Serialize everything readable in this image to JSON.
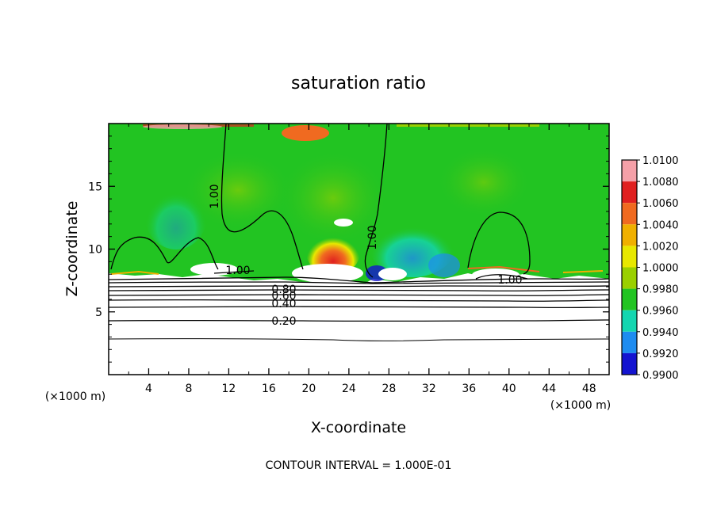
{
  "chart_data": {
    "type": "heatmap",
    "title": "saturation ratio",
    "xlabel": "X-coordinate",
    "ylabel": "Z-coordinate",
    "x_unit_label": "(×1000 m)",
    "y_unit_label": "(×1000 m)",
    "xlim": [
      0,
      50
    ],
    "ylim": [
      0,
      20
    ],
    "x_ticks": [
      "4",
      "8",
      "12",
      "16",
      "20",
      "24",
      "28",
      "32",
      "36",
      "40",
      "44",
      "48"
    ],
    "y_ticks": [
      "5",
      "10",
      "15"
    ],
    "footer": "CONTOUR INTERVAL = 1.000E-01",
    "colorbar": {
      "levels": [
        "1.0100",
        "1.0080",
        "1.0060",
        "1.0040",
        "1.0020",
        "1.0000",
        "0.9980",
        "0.9960",
        "0.9940",
        "0.9920",
        "0.9900"
      ],
      "colors": [
        "#f5a0a8",
        "#e02020",
        "#f06a20",
        "#f0b000",
        "#e8e800",
        "#9ad000",
        "#22c422",
        "#14d6b0",
        "#1e8cf0",
        "#1414d0",
        "#8014b0"
      ]
    },
    "contour_labels": [
      "1.00",
      "1.00",
      "1.00",
      "1.00",
      "0.80",
      "0.60",
      "0.40",
      "0.20"
    ],
    "notes_visible": [
      "upper region near 1.0000 (green)",
      "supersaturated core near x≈21–24, z≈8–10",
      "lower region below z≈7.5 subsaturated with contours 0.2–0.8"
    ]
  }
}
